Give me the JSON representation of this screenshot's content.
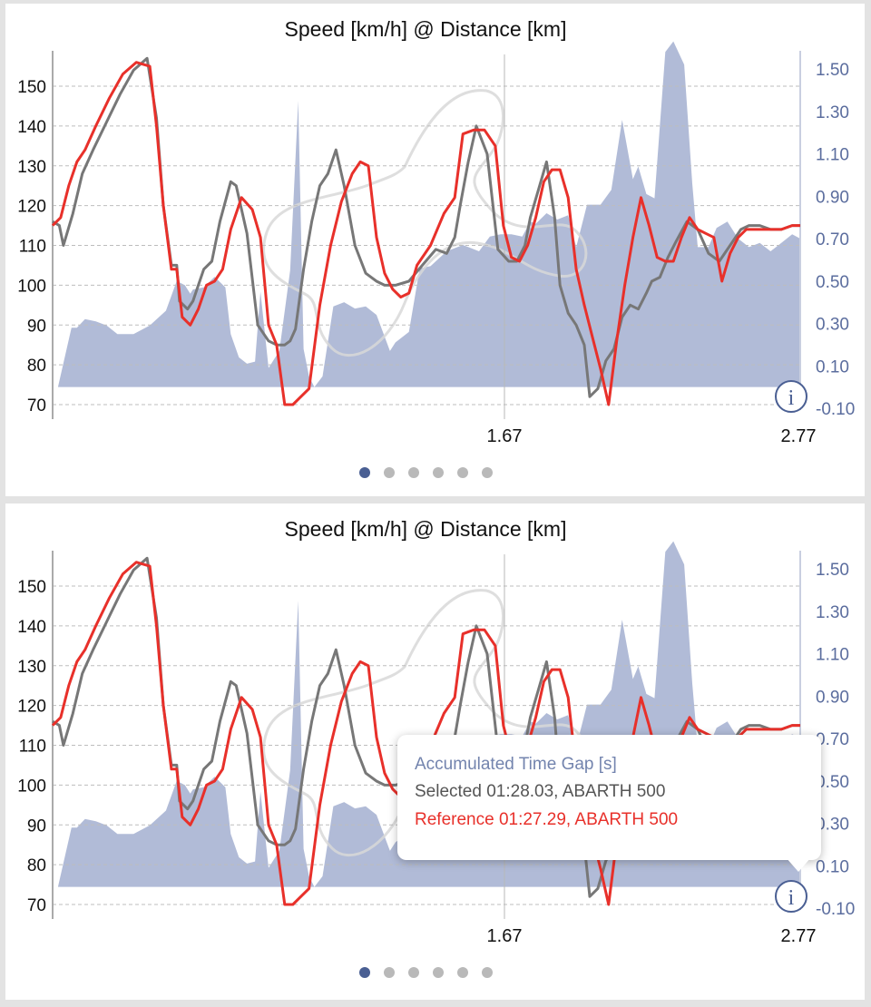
{
  "colors": {
    "selected_line": "#777777",
    "reference_line": "#e8302a",
    "time_gap_area": "#a9b4d3",
    "track_outline": "#d8d8d8",
    "right_axis_text": "#5b6d9e",
    "active_dot": "#4a5f93",
    "inactive_dot": "#b9b9b9",
    "gridline": "#bdbdbd"
  },
  "charts": [
    {
      "title": "Speed [km/h] @ Distance [km]",
      "left_ticks": [
        "150",
        "140",
        "130",
        "120",
        "110",
        "100",
        "90",
        "80",
        "70"
      ],
      "right_ticks": [
        "1.50",
        "1.30",
        "1.10",
        "0.90",
        "0.70",
        "0.50",
        "0.30",
        "0.10",
        "-0.10"
      ],
      "x_ticks": [
        "1.67",
        "2.77"
      ],
      "info_icon": "i",
      "page_dots": {
        "count": 6,
        "active": 0
      },
      "tooltip": null
    },
    {
      "title": "Speed [km/h] @ Distance [km]",
      "left_ticks": [
        "150",
        "140",
        "130",
        "120",
        "110",
        "100",
        "90",
        "80",
        "70"
      ],
      "right_ticks": [
        "1.50",
        "1.30",
        "1.10",
        "0.90",
        "0.70",
        "0.50",
        "0.30",
        "0.10",
        "-0.10"
      ],
      "x_ticks": [
        "1.67",
        "2.77"
      ],
      "info_icon": "i",
      "page_dots": {
        "count": 6,
        "active": 0
      },
      "tooltip": {
        "heading": "Accumulated Time Gap [s]",
        "selected": "Selected 01:28.03, ABARTH 500",
        "reference": "Reference 01:27.29, ABARTH 500"
      }
    }
  ],
  "chart_data": {
    "type": "line",
    "title": "Speed [km/h] @ Distance [km]",
    "x_range": [
      0,
      2.77
    ],
    "y_left_range": [
      67,
      158
    ],
    "y_right_range": [
      -0.15,
      1.63
    ],
    "x_ticks": [
      1.67,
      2.77
    ],
    "y_left_ticks": [
      150,
      140,
      130,
      120,
      110,
      100,
      90,
      80,
      70
    ],
    "y_right_ticks": [
      1.5,
      1.3,
      1.1,
      0.9,
      0.7,
      0.5,
      0.3,
      0.1,
      -0.1
    ],
    "grid": "horizontal dashed",
    "series": [
      {
        "name": "Selected 01:28.03, ABARTH 500",
        "axis": "left",
        "x": [
          0,
          0.025,
          0.04,
          0.075,
          0.11,
          0.15,
          0.2,
          0.25,
          0.3,
          0.35,
          0.385,
          0.41,
          0.44,
          0.46,
          0.47,
          0.5,
          0.52,
          0.54,
          0.56,
          0.59,
          0.62,
          0.66,
          0.68,
          0.72,
          0.76,
          0.8,
          0.83,
          0.86,
          0.88,
          0.9,
          0.93,
          0.96,
          0.99,
          1.02,
          1.05,
          1.08,
          1.12,
          1.16,
          1.2,
          1.23,
          1.27,
          1.32,
          1.37,
          1.42,
          1.46,
          1.49,
          1.51,
          1.54,
          1.57,
          1.61,
          1.65,
          1.69,
          1.72,
          1.75,
          1.77,
          1.8,
          1.83,
          1.86,
          1.88,
          1.91,
          1.94,
          1.97,
          1.99,
          2.02,
          2.05,
          2.08,
          2.11,
          2.14,
          2.17,
          2.2,
          2.22,
          2.25,
          2.28,
          2.31,
          2.35,
          2.39,
          2.43,
          2.47,
          2.51,
          2.55,
          2.58,
          2.62,
          2.66,
          2.7,
          2.74,
          2.77
        ],
        "values": [
          116,
          115,
          110,
          118,
          128,
          134,
          141,
          148,
          154,
          157,
          142,
          120,
          105,
          105,
          96,
          94,
          96,
          100,
          104,
          106,
          116,
          126,
          125,
          113,
          90,
          86,
          85,
          85,
          86,
          89,
          104,
          116,
          125,
          128,
          134,
          125,
          110,
          103,
          101,
          100,
          100,
          101,
          105,
          109,
          108,
          112,
          120,
          131,
          140,
          133,
          109,
          106,
          106,
          110,
          117,
          124,
          131,
          117,
          100,
          93,
          90,
          85,
          72,
          74,
          81,
          84,
          92,
          95,
          94,
          98,
          101,
          102,
          107,
          111,
          116,
          114,
          108,
          106,
          110,
          114,
          115,
          115,
          114,
          114,
          115,
          115
        ]
      },
      {
        "name": "Reference 01:27.29, ABARTH 500",
        "axis": "left",
        "x": [
          0,
          0.03,
          0.06,
          0.09,
          0.12,
          0.16,
          0.21,
          0.26,
          0.31,
          0.36,
          0.385,
          0.41,
          0.44,
          0.46,
          0.48,
          0.51,
          0.54,
          0.57,
          0.6,
          0.63,
          0.66,
          0.7,
          0.74,
          0.77,
          0.8,
          0.83,
          0.86,
          0.89,
          0.92,
          0.95,
          0.99,
          1.03,
          1.07,
          1.11,
          1.14,
          1.17,
          1.2,
          1.23,
          1.26,
          1.29,
          1.32,
          1.35,
          1.4,
          1.45,
          1.49,
          1.52,
          1.56,
          1.6,
          1.64,
          1.67,
          1.7,
          1.73,
          1.76,
          1.79,
          1.82,
          1.85,
          1.88,
          1.91,
          1.94,
          1.97,
          2.0,
          2.03,
          2.06,
          2.09,
          2.12,
          2.15,
          2.18,
          2.21,
          2.24,
          2.27,
          2.3,
          2.33,
          2.36,
          2.39,
          2.42,
          2.45,
          2.48,
          2.51,
          2.54,
          2.57,
          2.6,
          2.63,
          2.66,
          2.7,
          2.74,
          2.77
        ],
        "values": [
          115,
          117,
          125,
          131,
          134,
          140,
          147,
          153,
          156,
          155,
          140,
          120,
          104,
          104,
          92,
          90,
          94,
          100,
          101,
          104,
          114,
          122,
          119,
          112,
          90,
          85,
          70,
          70,
          72,
          74,
          95,
          110,
          121,
          128,
          131,
          130,
          112,
          103,
          99,
          97,
          98,
          105,
          110,
          118,
          122,
          138,
          139,
          139,
          135,
          115,
          107,
          106,
          110,
          117,
          126,
          129,
          129,
          122,
          104,
          95,
          87,
          79,
          70,
          86,
          100,
          112,
          122,
          115,
          107,
          106,
          106,
          112,
          117,
          114,
          113,
          112,
          101,
          108,
          112,
          114,
          114,
          114,
          114,
          114,
          115,
          115
        ]
      },
      {
        "name": "Accumulated Time Gap [s]",
        "axis": "right",
        "type": "area",
        "x": [
          0,
          0.02,
          0.07,
          0.09,
          0.12,
          0.16,
          0.2,
          0.24,
          0.3,
          0.36,
          0.42,
          0.46,
          0.49,
          0.51,
          0.52,
          0.56,
          0.6,
          0.64,
          0.66,
          0.69,
          0.72,
          0.75,
          0.77,
          0.8,
          0.84,
          0.88,
          0.91,
          0.93,
          0.95,
          0.97,
          1.0,
          1.04,
          1.08,
          1.12,
          1.16,
          1.2,
          1.25,
          1.27,
          1.32,
          1.36,
          1.4,
          1.46,
          1.52,
          1.58,
          1.62,
          1.66,
          1.7,
          1.74,
          1.77,
          1.79,
          1.83,
          1.87,
          1.91,
          1.94,
          1.98,
          2.03,
          2.07,
          2.11,
          2.15,
          2.17,
          2.2,
          2.23,
          2.27,
          2.3,
          2.34,
          2.37,
          2.39,
          2.43,
          2.46,
          2.5,
          2.54,
          2.58,
          2.62,
          2.66,
          2.7,
          2.74,
          2.77
        ],
        "values": [
          0.0,
          0.0,
          0.28,
          0.28,
          0.32,
          0.31,
          0.29,
          0.25,
          0.25,
          0.29,
          0.36,
          0.5,
          0.48,
          0.44,
          0.46,
          0.47,
          0.52,
          0.47,
          0.25,
          0.14,
          0.11,
          0.12,
          0.45,
          0.09,
          0.17,
          0.55,
          1.35,
          0.18,
          0.05,
          0.0,
          0.05,
          0.38,
          0.4,
          0.37,
          0.38,
          0.34,
          0.17,
          0.21,
          0.26,
          0.56,
          0.57,
          0.64,
          0.67,
          0.64,
          0.71,
          0.72,
          0.72,
          0.71,
          0.78,
          0.77,
          0.82,
          0.79,
          0.81,
          0.66,
          0.86,
          0.86,
          0.93,
          1.26,
          0.98,
          1.04,
          0.91,
          0.89,
          1.58,
          1.63,
          1.52,
          0.96,
          0.66,
          0.66,
          0.75,
          0.78,
          0.7,
          0.66,
          0.68,
          0.64,
          0.68,
          0.72,
          0.7
        ]
      }
    ]
  }
}
